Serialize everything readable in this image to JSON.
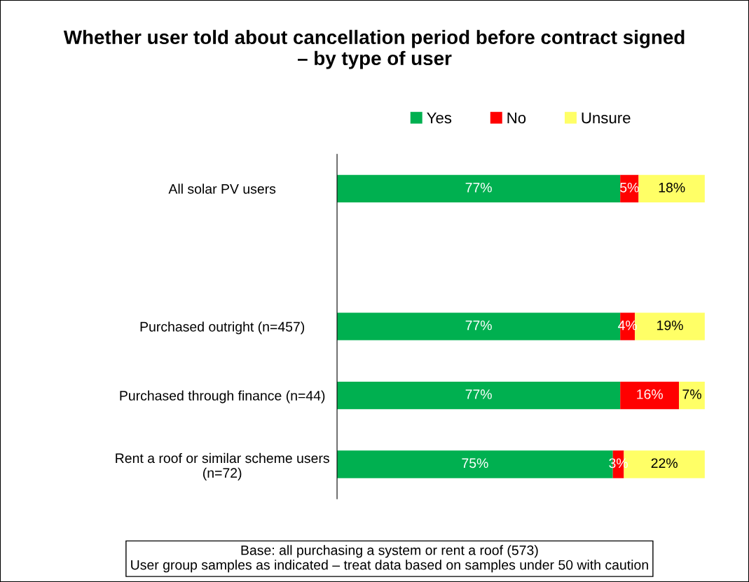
{
  "chart_data": {
    "type": "bar",
    "orientation": "horizontal",
    "stacked": true,
    "title": "Whether user told about cancellation period before contract signed\n– by type of user",
    "categories": [
      "All solar PV users",
      null,
      "Purchased outright (n=457)",
      "Purchased through finance (n=44)",
      "Rent a roof or similar scheme users\n(n=72)"
    ],
    "series": [
      {
        "name": "Yes",
        "color": "#00b050",
        "values": [
          77,
          null,
          77,
          77,
          75
        ],
        "value_labels": [
          "77%",
          null,
          "77%",
          "77%",
          "75%"
        ]
      },
      {
        "name": "No",
        "color": "#ff0000",
        "values": [
          5,
          null,
          4,
          16,
          3
        ],
        "value_labels": [
          "5%",
          null,
          "4%",
          "16%",
          "3%"
        ]
      },
      {
        "name": "Unsure",
        "color": "#ffff66",
        "values": [
          18,
          null,
          19,
          7,
          22
        ],
        "value_labels": [
          "18%",
          null,
          "19%",
          "7%",
          "22%"
        ]
      }
    ],
    "xlim": [
      0,
      100
    ],
    "tick_labels": "y",
    "legend": "top",
    "grid": false,
    "annotations": [
      "Base: all purchasing a system or rent a roof (573)\nUser group samples as indicated – treat data based on samples under 50 with caution"
    ]
  }
}
